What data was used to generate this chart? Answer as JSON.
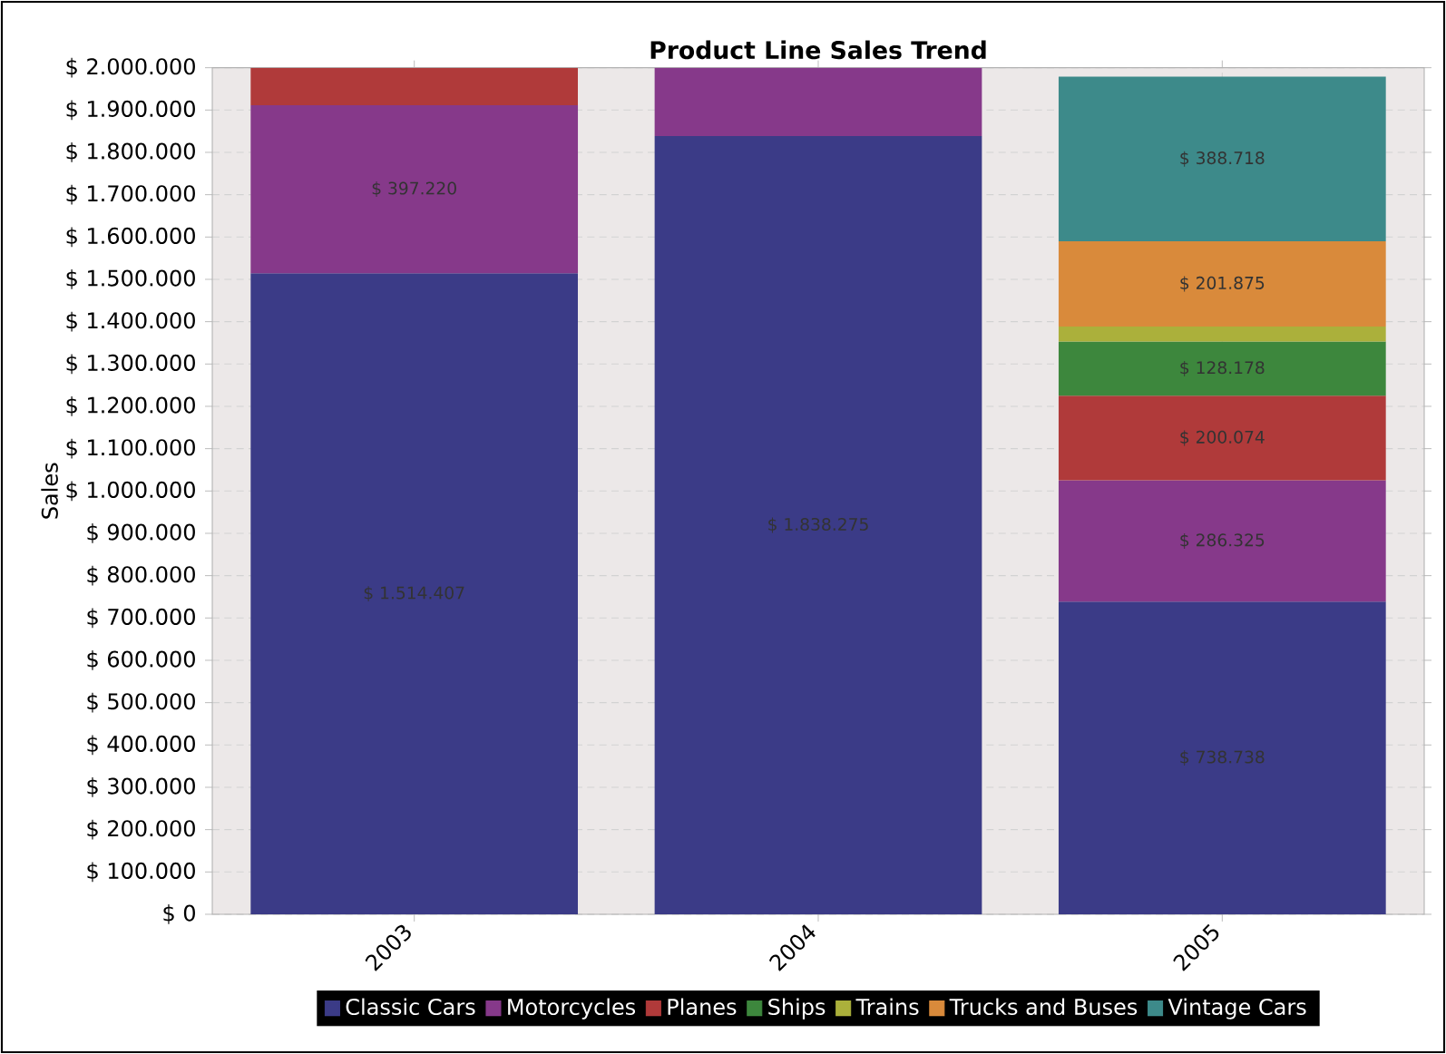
{
  "chart_data": {
    "type": "bar",
    "stacked": true,
    "title": "Product Line Sales Trend",
    "ylabel": "Sales",
    "categories": [
      "2003",
      "2004",
      "2005"
    ],
    "series": [
      {
        "name": "Classic Cars",
        "color": "#3b3b87",
        "values": [
          1514407,
          1838275,
          738738
        ],
        "value_labels": [
          "$ 1.514.407",
          "$ 1.838.275",
          "$ 738.738"
        ]
      },
      {
        "name": "Motorcycles",
        "color": "#86398a",
        "values": [
          397220,
          162000,
          286325
        ],
        "value_labels": [
          "$ 397.220",
          null,
          "$ 286.325"
        ]
      },
      {
        "name": "Planes",
        "color": "#b03a3a",
        "values": [
          88000,
          null,
          200074
        ],
        "value_labels": [
          null,
          null,
          "$ 200.074"
        ]
      },
      {
        "name": "Ships",
        "color": "#3d873d",
        "values": [
          null,
          null,
          128178
        ],
        "value_labels": [
          null,
          null,
          "$ 128.178"
        ]
      },
      {
        "name": "Trains",
        "color": "#abb03b",
        "values": [
          null,
          null,
          35000
        ],
        "value_labels": [
          null,
          null,
          null
        ]
      },
      {
        "name": "Trucks and Buses",
        "color": "#d98a3b",
        "values": [
          null,
          null,
          201875
        ],
        "value_labels": [
          null,
          null,
          "$ 201.875"
        ]
      },
      {
        "name": "Vintage Cars",
        "color": "#3d8a8a",
        "values": [
          null,
          null,
          388718
        ],
        "value_labels": [
          null,
          null,
          "$ 388.718"
        ]
      }
    ],
    "ylim": [
      0,
      2000000
    ],
    "yticks": [
      {
        "value": 0,
        "label": "$ 0"
      },
      {
        "value": 100000,
        "label": "$ 100.000"
      },
      {
        "value": 200000,
        "label": "$ 200.000"
      },
      {
        "value": 300000,
        "label": "$ 300.000"
      },
      {
        "value": 400000,
        "label": "$ 400.000"
      },
      {
        "value": 500000,
        "label": "$ 500.000"
      },
      {
        "value": 600000,
        "label": "$ 600.000"
      },
      {
        "value": 700000,
        "label": "$ 700.000"
      },
      {
        "value": 800000,
        "label": "$ 800.000"
      },
      {
        "value": 900000,
        "label": "$ 900.000"
      },
      {
        "value": 1000000,
        "label": "$ 1.000.000"
      },
      {
        "value": 1100000,
        "label": "$ 1.100.000"
      },
      {
        "value": 1200000,
        "label": "$ 1.200.000"
      },
      {
        "value": 1300000,
        "label": "$ 1.300.000"
      },
      {
        "value": 1400000,
        "label": "$ 1.400.000"
      },
      {
        "value": 1500000,
        "label": "$ 1.500.000"
      },
      {
        "value": 1600000,
        "label": "$ 1.600.000"
      },
      {
        "value": 1700000,
        "label": "$ 1.700.000"
      },
      {
        "value": 1800000,
        "label": "$ 1.800.000"
      },
      {
        "value": 1900000,
        "label": "$ 1.900.000"
      },
      {
        "value": 2000000,
        "label": "$ 2.000.000"
      }
    ],
    "grid": true,
    "legend": "bottom"
  }
}
